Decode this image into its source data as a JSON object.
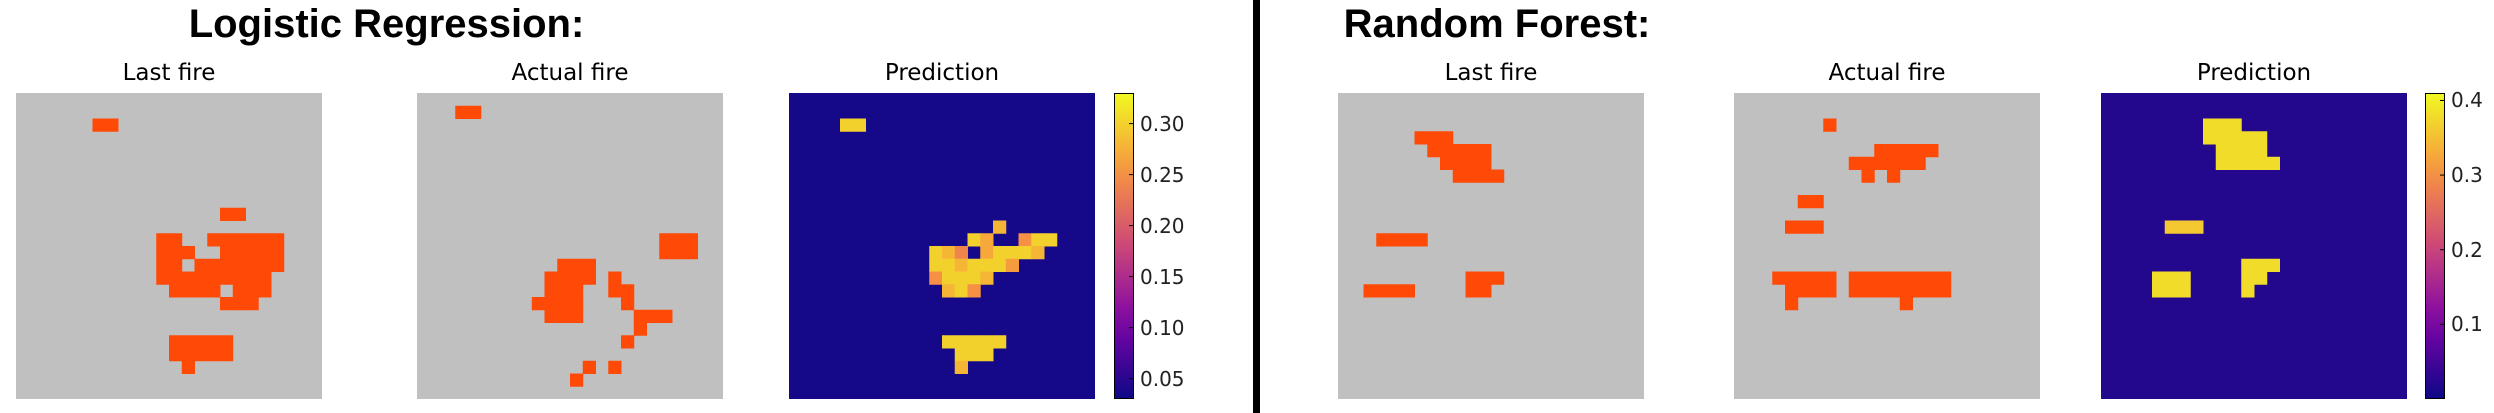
{
  "colors": {
    "background_gray": "#c0c0c0",
    "fire_orange": "#ff4a07",
    "pred_low": "#22088e",
    "pred_high": "#f0f921"
  },
  "chart_data": [
    {
      "panel_title": "Logistic Regression:",
      "type": "heatmap",
      "subplots": [
        {
          "title": "Last fire",
          "colormap": "binary-orange",
          "cells": [
            [
              6,
              2
            ],
            [
              7,
              2
            ],
            [
              16,
              9
            ],
            [
              17,
              9
            ],
            [
              11,
              11
            ],
            [
              12,
              11
            ],
            [
              15,
              11
            ],
            [
              16,
              11
            ],
            [
              17,
              11
            ],
            [
              18,
              11
            ],
            [
              19,
              11
            ],
            [
              20,
              11
            ],
            [
              11,
              12
            ],
            [
              12,
              12
            ],
            [
              13,
              12
            ],
            [
              16,
              12
            ],
            [
              17,
              12
            ],
            [
              18,
              12
            ],
            [
              19,
              12
            ],
            [
              20,
              12
            ],
            [
              11,
              13
            ],
            [
              12,
              13
            ],
            [
              14,
              13
            ],
            [
              15,
              13
            ],
            [
              16,
              13
            ],
            [
              17,
              13
            ],
            [
              18,
              13
            ],
            [
              19,
              13
            ],
            [
              20,
              13
            ],
            [
              11,
              14
            ],
            [
              12,
              14
            ],
            [
              13,
              14
            ],
            [
              14,
              14
            ],
            [
              15,
              14
            ],
            [
              16,
              14
            ],
            [
              17,
              14
            ],
            [
              18,
              14
            ],
            [
              19,
              14
            ],
            [
              12,
              15
            ],
            [
              13,
              15
            ],
            [
              14,
              15
            ],
            [
              15,
              15
            ],
            [
              17,
              15
            ],
            [
              18,
              15
            ],
            [
              19,
              15
            ],
            [
              16,
              16
            ],
            [
              17,
              16
            ],
            [
              18,
              16
            ],
            [
              12,
              19
            ],
            [
              13,
              19
            ],
            [
              14,
              19
            ],
            [
              15,
              19
            ],
            [
              16,
              19
            ],
            [
              12,
              20
            ],
            [
              13,
              20
            ],
            [
              14,
              20
            ],
            [
              15,
              20
            ],
            [
              16,
              20
            ],
            [
              13,
              21
            ]
          ]
        },
        {
          "title": "Actual fire",
          "colormap": "binary-orange",
          "cells": [
            [
              3,
              1
            ],
            [
              4,
              1
            ],
            [
              19,
              11
            ],
            [
              20,
              11
            ],
            [
              21,
              11
            ],
            [
              19,
              12
            ],
            [
              20,
              12
            ],
            [
              21,
              12
            ],
            [
              11,
              13
            ],
            [
              12,
              13
            ],
            [
              13,
              13
            ],
            [
              10,
              14
            ],
            [
              11,
              14
            ],
            [
              12,
              14
            ],
            [
              13,
              14
            ],
            [
              15,
              14
            ],
            [
              10,
              15
            ],
            [
              11,
              15
            ],
            [
              12,
              15
            ],
            [
              15,
              15
            ],
            [
              16,
              15
            ],
            [
              9,
              16
            ],
            [
              10,
              16
            ],
            [
              11,
              16
            ],
            [
              12,
              16
            ],
            [
              16,
              16
            ],
            [
              10,
              17
            ],
            [
              11,
              17
            ],
            [
              12,
              17
            ],
            [
              17,
              17
            ],
            [
              18,
              17
            ],
            [
              19,
              17
            ],
            [
              17,
              18
            ],
            [
              16,
              19
            ],
            [
              13,
              21
            ],
            [
              12,
              22
            ],
            [
              15,
              21
            ]
          ]
        },
        {
          "title": "Prediction",
          "colormap": "plasma",
          "cells": [
            [
              4,
              2,
              0.3
            ],
            [
              5,
              2,
              0.3
            ],
            [
              16,
              10,
              0.28
            ],
            [
              14,
              11,
              0.3
            ],
            [
              15,
              11,
              0.27
            ],
            [
              18,
              11,
              0.25
            ],
            [
              19,
              11,
              0.3
            ],
            [
              20,
              11,
              0.3
            ],
            [
              11,
              12,
              0.3
            ],
            [
              12,
              12,
              0.28
            ],
            [
              13,
              12,
              0.24
            ],
            [
              15,
              12,
              0.27
            ],
            [
              16,
              12,
              0.3
            ],
            [
              17,
              12,
              0.3
            ],
            [
              18,
              12,
              0.3
            ],
            [
              19,
              12,
              0.28
            ],
            [
              11,
              13,
              0.3
            ],
            [
              12,
              13,
              0.3
            ],
            [
              13,
              13,
              0.28
            ],
            [
              14,
              13,
              0.3
            ],
            [
              15,
              13,
              0.3
            ],
            [
              16,
              13,
              0.3
            ],
            [
              17,
              13,
              0.26
            ],
            [
              11,
              14,
              0.25
            ],
            [
              12,
              14,
              0.3
            ],
            [
              13,
              14,
              0.3
            ],
            [
              14,
              14,
              0.3
            ],
            [
              15,
              14,
              0.28
            ],
            [
              12,
              15,
              0.28
            ],
            [
              13,
              15,
              0.3
            ],
            [
              14,
              15,
              0.25
            ],
            [
              12,
              19,
              0.3
            ],
            [
              13,
              19,
              0.3
            ],
            [
              14,
              19,
              0.3
            ],
            [
              15,
              19,
              0.3
            ],
            [
              16,
              19,
              0.3
            ],
            [
              13,
              20,
              0.3
            ],
            [
              14,
              20,
              0.3
            ],
            [
              15,
              20,
              0.3
            ],
            [
              13,
              21,
              0.28
            ]
          ],
          "base_value": 0.035
        },
        {
          "type": "colorbar",
          "ticks": [
            "0.30",
            "0.25",
            "0.20",
            "0.15",
            "0.10",
            "0.05"
          ],
          "range": [
            0.03,
            0.33
          ]
        }
      ]
    },
    {
      "panel_title": "Random Forest:",
      "type": "heatmap",
      "subplots": [
        {
          "title": "Last fire",
          "colormap": "binary-orange",
          "cells": [
            [
              6,
              3
            ],
            [
              7,
              3
            ],
            [
              8,
              3
            ],
            [
              7,
              4
            ],
            [
              8,
              4
            ],
            [
              9,
              4
            ],
            [
              10,
              4
            ],
            [
              11,
              4
            ],
            [
              8,
              5
            ],
            [
              9,
              5
            ],
            [
              10,
              5
            ],
            [
              11,
              5
            ],
            [
              9,
              6
            ],
            [
              10,
              6
            ],
            [
              11,
              6
            ],
            [
              12,
              6
            ],
            [
              3,
              11
            ],
            [
              4,
              11
            ],
            [
              5,
              11
            ],
            [
              6,
              11
            ],
            [
              2,
              15
            ],
            [
              3,
              15
            ],
            [
              4,
              15
            ],
            [
              5,
              15
            ],
            [
              10,
              14
            ],
            [
              11,
              14
            ],
            [
              12,
              14
            ],
            [
              10,
              15
            ],
            [
              11,
              15
            ]
          ]
        },
        {
          "title": "Actual fire",
          "colormap": "binary-orange",
          "cells": [
            [
              7,
              2
            ],
            [
              11,
              4
            ],
            [
              12,
              4
            ],
            [
              13,
              4
            ],
            [
              14,
              4
            ],
            [
              15,
              4
            ],
            [
              9,
              5
            ],
            [
              10,
              5
            ],
            [
              11,
              5
            ],
            [
              12,
              5
            ],
            [
              13,
              5
            ],
            [
              14,
              5
            ],
            [
              10,
              6
            ],
            [
              12,
              6
            ],
            [
              5,
              8
            ],
            [
              6,
              8
            ],
            [
              4,
              10
            ],
            [
              5,
              10
            ],
            [
              6,
              10
            ],
            [
              3,
              14
            ],
            [
              4,
              14
            ],
            [
              5,
              14
            ],
            [
              6,
              14
            ],
            [
              7,
              14
            ],
            [
              4,
              15
            ],
            [
              5,
              15
            ],
            [
              6,
              15
            ],
            [
              7,
              15
            ],
            [
              4,
              16
            ],
            [
              9,
              14
            ],
            [
              10,
              14
            ],
            [
              11,
              14
            ],
            [
              12,
              14
            ],
            [
              13,
              14
            ],
            [
              14,
              14
            ],
            [
              15,
              14
            ],
            [
              16,
              14
            ],
            [
              9,
              15
            ],
            [
              10,
              15
            ],
            [
              11,
              15
            ],
            [
              12,
              15
            ],
            [
              13,
              15
            ],
            [
              14,
              15
            ],
            [
              15,
              15
            ],
            [
              16,
              15
            ],
            [
              13,
              16
            ]
          ]
        },
        {
          "title": "Prediction",
          "colormap": "plasma",
          "cells": [
            [
              8,
              2,
              0.38
            ],
            [
              9,
              2,
              0.38
            ],
            [
              10,
              2,
              0.38
            ],
            [
              8,
              3,
              0.38
            ],
            [
              9,
              3,
              0.38
            ],
            [
              10,
              3,
              0.38
            ],
            [
              11,
              3,
              0.38
            ],
            [
              12,
              3,
              0.38
            ],
            [
              9,
              4,
              0.38
            ],
            [
              10,
              4,
              0.38
            ],
            [
              11,
              4,
              0.38
            ],
            [
              12,
              4,
              0.38
            ],
            [
              9,
              5,
              0.38
            ],
            [
              10,
              5,
              0.38
            ],
            [
              11,
              5,
              0.38
            ],
            [
              12,
              5,
              0.38
            ],
            [
              13,
              5,
              0.38
            ],
            [
              5,
              10,
              0.36
            ],
            [
              6,
              10,
              0.36
            ],
            [
              7,
              10,
              0.36
            ],
            [
              4,
              14,
              0.38
            ],
            [
              5,
              14,
              0.38
            ],
            [
              6,
              14,
              0.38
            ],
            [
              4,
              15,
              0.38
            ],
            [
              5,
              15,
              0.38
            ],
            [
              6,
              15,
              0.38
            ],
            [
              11,
              13,
              0.38
            ],
            [
              12,
              13,
              0.38
            ],
            [
              13,
              13,
              0.38
            ],
            [
              11,
              14,
              0.38
            ],
            [
              12,
              14,
              0.38
            ],
            [
              11,
              15,
              0.38
            ]
          ],
          "base_value": 0.02
        },
        {
          "type": "colorbar",
          "ticks": [
            "0.4",
            "0.3",
            "0.2",
            "0.1"
          ],
          "range": [
            0.0,
            0.41
          ]
        }
      ]
    }
  ]
}
